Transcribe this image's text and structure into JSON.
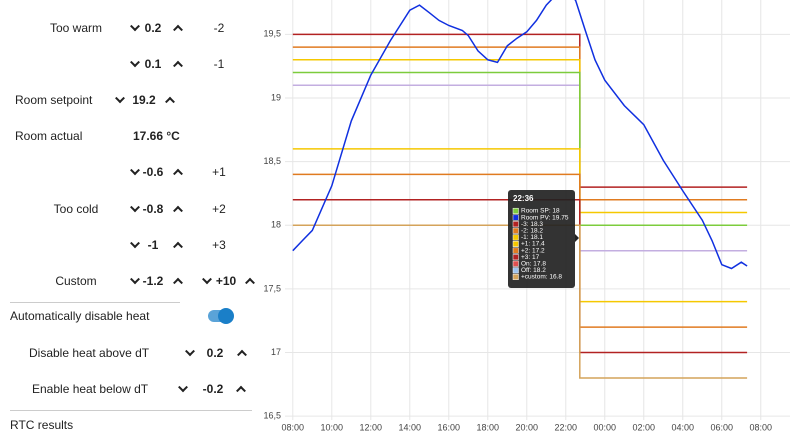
{
  "panel": {
    "rows": [
      {
        "label": "Too warm",
        "value": "0.2",
        "offset": "-2"
      },
      {
        "value": "0.1",
        "offset": "-1"
      },
      {
        "label": "Room setpoint",
        "value": "19.2"
      },
      {
        "label": "Room actual",
        "reading": "17.66 °C"
      },
      {
        "value": "-0.6",
        "offset": "+1"
      },
      {
        "label": "Too cold",
        "value": "-0.8",
        "offset": "+2"
      },
      {
        "value": "-1",
        "offset": "+3"
      },
      {
        "label": "Custom",
        "value": "-1.2",
        "custom": "+10"
      }
    ],
    "toggle_label": "Automatically disable heat",
    "disable_above": {
      "label": "Disable heat above dT",
      "value": "0.2"
    },
    "enable_below": {
      "label": "Enable heat below dT",
      "value": "-0.2"
    },
    "footer": "RTC results"
  },
  "chart_data": {
    "type": "line",
    "x": [
      8,
      22.72,
      22.72,
      31.3
    ],
    "xlim": [
      7.6,
      33.5
    ],
    "xticks": [
      {
        "value": 8,
        "label": "08:00"
      },
      {
        "value": 10,
        "label": "10:00"
      },
      {
        "value": 12,
        "label": "12:00"
      },
      {
        "value": 14,
        "label": "14:00"
      },
      {
        "value": 16,
        "label": "16:00"
      },
      {
        "value": 18,
        "label": "18:00"
      },
      {
        "value": 20,
        "label": "20:00"
      },
      {
        "value": 22,
        "label": "22:00"
      },
      {
        "value": 24,
        "label": "00:00"
      },
      {
        "value": 26,
        "label": "02:00"
      },
      {
        "value": 28,
        "label": "04:00"
      },
      {
        "value": 30,
        "label": "06:00"
      },
      {
        "value": 32,
        "label": "08:00"
      }
    ],
    "ylim": [
      16.47,
      19.77
    ],
    "yticks": [
      {
        "value": 16.5,
        "label": "16,5"
      },
      17,
      {
        "value": 17.5,
        "label": "17,5"
      },
      18,
      {
        "value": 18.5,
        "label": "18,5"
      },
      19,
      {
        "value": 19.5,
        "label": "19,5"
      }
    ],
    "grid": true,
    "series": [
      {
        "color": "#c3aee0",
        "values": [
          19.1,
          19.1,
          17.8,
          17.8
        ]
      },
      {
        "color": "#b22222",
        "values": [
          19.5,
          19.5,
          18.3,
          18.3
        ]
      },
      {
        "color": "#e07b20",
        "values": [
          19.4,
          19.4,
          18.2,
          18.2
        ]
      },
      {
        "color": "#f5c800",
        "values": [
          19.3,
          19.3,
          18.1,
          18.1
        ]
      },
      {
        "color": "#7ccc3c",
        "values": [
          19.2,
          19.2,
          18.0,
          18.0
        ]
      },
      {
        "color": "#f5c800",
        "values": [
          18.6,
          18.6,
          17.4,
          17.4
        ]
      },
      {
        "color": "#e07b20",
        "values": [
          18.4,
          18.4,
          17.2,
          17.2
        ]
      },
      {
        "color": "#b22222",
        "values": [
          18.2,
          18.2,
          17.0,
          17.0
        ]
      },
      {
        "color": "#d4a35a",
        "values": [
          18.0,
          18.0,
          16.8,
          16.8
        ]
      }
    ],
    "pv": {
      "color": "#1030e0",
      "x": [
        8,
        8.5,
        9,
        10,
        11,
        12,
        13,
        14,
        14.5,
        15,
        15.5,
        16,
        16.7,
        17,
        17.5,
        18,
        18.5,
        19,
        19.5,
        20,
        20.5,
        21,
        21.5,
        22,
        22.5,
        23,
        23.5,
        24,
        25,
        26,
        27,
        28,
        29,
        29.5,
        30,
        30.5,
        31,
        31.3
      ],
      "values": [
        17.8,
        17.88,
        17.96,
        18.31,
        18.82,
        19.18,
        19.45,
        19.69,
        19.73,
        19.67,
        19.61,
        19.57,
        19.53,
        19.49,
        19.37,
        19.3,
        19.28,
        19.41,
        19.47,
        19.52,
        19.61,
        19.73,
        19.81,
        19.81,
        19.77,
        19.53,
        19.3,
        19.14,
        18.94,
        18.79,
        18.51,
        18.27,
        18.04,
        17.88,
        17.69,
        17.66,
        17.71,
        17.68
      ]
    },
    "tooltip": {
      "title": "22:36",
      "items": [
        {
          "text": "Room SP: 18",
          "color": "#7ccc3c"
        },
        {
          "text": "Room PV: 19.75",
          "color": "#1030e0"
        },
        {
          "text": "-3: 18.3",
          "color": "#b22222"
        },
        {
          "text": "-2: 18.2",
          "color": "#e07b20"
        },
        {
          "text": "-1: 18.1",
          "color": "#f5c800"
        },
        {
          "text": "+1: 17.4",
          "color": "#f5c800"
        },
        {
          "text": "+2: 17.2",
          "color": "#e07b20"
        },
        {
          "text": "+3: 17",
          "color": "#b22222"
        },
        {
          "text": "On: 17.8",
          "color": "#e05050"
        },
        {
          "text": "Off: 18.2",
          "color": "#9ec4f0"
        },
        {
          "text": "+custom: 16.8",
          "color": "#d4a35a"
        }
      ]
    }
  }
}
